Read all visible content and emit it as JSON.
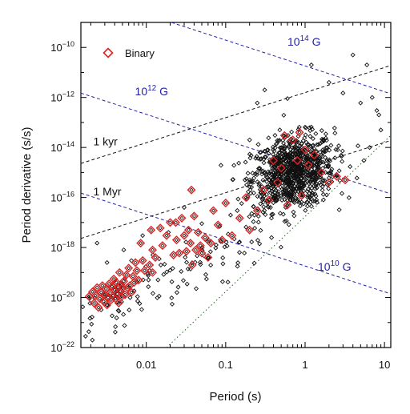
{
  "chart_data": {
    "type": "scatter",
    "title": "",
    "xlabel": "Period (s)",
    "ylabel": "Period derivative (s/s)",
    "x_scale": "log",
    "y_scale": "log",
    "xlim": [
      0.0015,
      12
    ],
    "ylim": [
      1e-22,
      1e-09
    ],
    "x_ticks": [
      {
        "value": 0.01,
        "label": "0.01"
      },
      {
        "value": 0.1,
        "label": "0.1"
      },
      {
        "value": 1,
        "label": "1"
      },
      {
        "value": 10,
        "label": "10"
      }
    ],
    "y_ticks": [
      {
        "value": 1e-10,
        "base": "10",
        "exp": "−10"
      },
      {
        "value": 1e-12,
        "base": "10",
        "exp": "−12"
      },
      {
        "value": 1e-14,
        "base": "10",
        "exp": "−14"
      },
      {
        "value": 1e-16,
        "base": "10",
        "exp": "−16"
      },
      {
        "value": 1e-18,
        "base": "10",
        "exp": "−18"
      },
      {
        "value": 1e-20,
        "base": "10",
        "exp": "−20"
      },
      {
        "value": 1e-22,
        "base": "10",
        "exp": "−22"
      }
    ],
    "legend": {
      "position": "top-left",
      "label": "Binary",
      "color": "#dd2222"
    },
    "reference_lines": [
      {
        "kind": "field",
        "label_base": "10",
        "label_exp": "14",
        "label_unit": " G",
        "color": "#2222aa",
        "style": "dashed",
        "label_x": 0.6,
        "label_y": 1.2e-10
      },
      {
        "kind": "field",
        "label_base": "10",
        "label_exp": "12",
        "label_unit": " G",
        "color": "#2222aa",
        "style": "dashed",
        "label_x": 0.0072,
        "label_y": 1.2e-12
      },
      {
        "kind": "field",
        "label_base": "10",
        "label_exp": "10",
        "label_unit": " G",
        "color": "#2222aa",
        "style": "dashed",
        "label_x": 1.45,
        "label_y": 1.2e-19
      },
      {
        "kind": "age",
        "label": "1 kyr",
        "color": "#111111",
        "style": "dashed",
        "label_x": 0.00215,
        "label_y": 1.2e-14
      },
      {
        "kind": "age",
        "label": "1 Myr",
        "color": "#111111",
        "style": "dashed",
        "label_x": 0.00215,
        "label_y": 1.2e-16
      },
      {
        "kind": "death",
        "label": "",
        "color": "#226622",
        "style": "dotted"
      }
    ],
    "series": [
      {
        "name": "Binary",
        "marker": "diamond",
        "color": "#dd2222",
        "points": [
          [
            0.0019,
            1.1e-20
          ],
          [
            0.0021,
            1.7e-20
          ],
          [
            0.0022,
            6e-21
          ],
          [
            0.0023,
            1.2e-20
          ],
          [
            0.0024,
            2.5e-20
          ],
          [
            0.0025,
            4e-21
          ],
          [
            0.0026,
            9e-21
          ],
          [
            0.0027,
            1.6e-20
          ],
          [
            0.0028,
            3e-20
          ],
          [
            0.0029,
            7e-21
          ],
          [
            0.003,
            1.3e-20
          ],
          [
            0.0031,
            2.2e-20
          ],
          [
            0.0032,
            5e-21
          ],
          [
            0.0033,
            1e-20
          ],
          [
            0.0034,
            3.5e-20
          ],
          [
            0.0035,
            1.5e-20
          ],
          [
            0.0036,
            8e-21
          ],
          [
            0.0037,
            2.8e-20
          ],
          [
            0.0038,
            1.2e-20
          ],
          [
            0.0039,
            5.5e-20
          ],
          [
            0.004,
            2e-20
          ],
          [
            0.0041,
            9e-21
          ],
          [
            0.0042,
            4e-20
          ],
          [
            0.0043,
            1.4e-20
          ],
          [
            0.0044,
            2.6e-20
          ],
          [
            0.0045,
            6e-21
          ],
          [
            0.0046,
            1e-19
          ],
          [
            0.0047,
            1.8e-20
          ],
          [
            0.0048,
            3.2e-20
          ],
          [
            0.0049,
            1.1e-20
          ],
          [
            0.005,
            2.4e-20
          ],
          [
            0.0052,
            4.5e-20
          ],
          [
            0.0054,
            1.3e-20
          ],
          [
            0.0056,
            8e-20
          ],
          [
            0.0058,
            2.5e-20
          ],
          [
            0.006,
            1.5e-19
          ],
          [
            0.0062,
            3e-20
          ],
          [
            0.0065,
            1.6e-20
          ],
          [
            0.0068,
            7e-20
          ],
          [
            0.007,
            4e-20
          ],
          [
            0.0073,
            2.5e-19
          ],
          [
            0.0076,
            1.2e-19
          ],
          [
            0.008,
            5e-20
          ],
          [
            0.0085,
            1.5e-18
          ],
          [
            0.009,
            3e-19
          ],
          [
            0.0095,
            1.2e-19
          ],
          [
            0.011,
            2e-19
          ],
          [
            0.012,
            8e-19
          ],
          [
            0.013,
            4e-19
          ],
          [
            0.015,
            6e-18
          ],
          [
            0.016,
            1.2e-18
          ],
          [
            0.018,
            3e-18
          ],
          [
            0.02,
            1e-17
          ],
          [
            0.022,
            5e-19
          ],
          [
            0.024,
            2e-18
          ],
          [
            0.026,
            6e-19
          ],
          [
            0.028,
            1.5e-17
          ],
          [
            0.03,
            3e-18
          ],
          [
            0.032,
            7e-19
          ],
          [
            0.034,
            5e-18
          ],
          [
            0.036,
            1.5e-18
          ],
          [
            0.038,
            2e-19
          ],
          [
            0.04,
            1.8e-17
          ],
          [
            0.042,
            8e-19
          ],
          [
            0.045,
            4e-18
          ],
          [
            0.048,
            1.2e-18
          ],
          [
            0.05,
            6e-19
          ],
          [
            0.055,
            2.5e-18
          ],
          [
            0.06,
            4e-19
          ],
          [
            0.065,
            1.5e-18
          ],
          [
            0.07,
            3e-17
          ],
          [
            0.08,
            8e-18
          ],
          [
            0.09,
            2e-18
          ],
          [
            0.1,
            6e-17
          ],
          [
            0.12,
            3e-18
          ],
          [
            0.15,
            1.5e-17
          ],
          [
            0.18,
            1e-16
          ],
          [
            0.2,
            5e-18
          ],
          [
            0.25,
            3e-17
          ],
          [
            0.3,
            2e-16
          ],
          [
            0.35,
            8e-17
          ],
          [
            0.4,
            3e-15
          ],
          [
            0.45,
            4e-16
          ],
          [
            0.5,
            1.5e-15
          ],
          [
            0.55,
            3e-14
          ],
          [
            0.6,
            5e-17
          ],
          [
            0.7,
            2e-14
          ],
          [
            0.8,
            3e-15
          ],
          [
            0.85,
            4e-14
          ],
          [
            0.9,
            1.2e-16
          ],
          [
            1.0,
            8e-15
          ],
          [
            1.1,
            2e-15
          ],
          [
            1.3,
            5e-15
          ],
          [
            1.6,
            1e-15
          ],
          [
            2.0,
            4e-16
          ],
          [
            2.5,
            7e-16
          ],
          [
            3.2,
            5e-16
          ],
          [
            0.0235,
            1e-17
          ],
          [
            0.0115,
            5e-18
          ],
          [
            0.037,
            2e-16
          ],
          [
            0.012,
            1e-19
          ]
        ]
      },
      {
        "name": "",
        "marker": "diamond",
        "color": "#111111",
        "cluster": {
          "center_period": 0.7,
          "center_pdot": 1e-15,
          "period_dex": 0.26,
          "pdot_dex": 0.72,
          "count": 900
        },
        "tail_ranges": {
          "period": [
            0.0015,
            0.3
          ],
          "pdot": [
            1e-21,
            3e-18
          ],
          "count": 120
        },
        "extra_points": [
          [
            0.0024,
            1.5e-18
          ],
          [
            0.0052,
            8e-19
          ],
          [
            0.0065,
            3e-19
          ],
          [
            0.0032,
            2.5e-19
          ],
          [
            0.019,
            4e-18
          ],
          [
            0.009,
            3e-18
          ],
          [
            0.03,
            4e-17
          ],
          [
            0.05,
            9e-18
          ],
          [
            0.14,
            3e-17
          ],
          [
            0.2,
            2e-14
          ],
          [
            0.25,
            6e-13
          ],
          [
            0.31,
            2e-12
          ],
          [
            0.6,
            9e-13
          ],
          [
            1.2,
            2e-11
          ],
          [
            2,
            4e-12
          ],
          [
            3,
            1.5e-12
          ],
          [
            5,
            6e-13
          ],
          [
            6,
            2e-11
          ],
          [
            4,
            5e-11
          ],
          [
            7,
            1e-12
          ],
          [
            8,
            3e-13
          ],
          [
            8.5,
            2e-13
          ],
          [
            6.5,
            1e-14
          ],
          [
            5.5,
            3e-15
          ],
          [
            4.5,
            6e-16
          ],
          [
            9,
            5e-14
          ]
        ]
      }
    ]
  }
}
